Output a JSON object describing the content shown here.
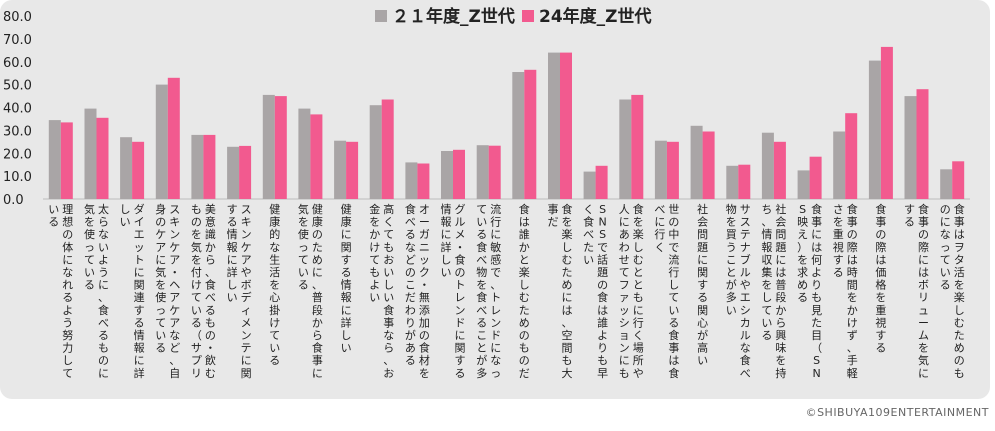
{
  "chart_data": {
    "type": "bar",
    "ylim": [
      0,
      80
    ],
    "yticks": [
      "0.0",
      "10.0",
      "20.0",
      "30.0",
      "40.0",
      "50.0",
      "60.0",
      "70.0",
      "80.0"
    ],
    "legend_position": "top-center",
    "grid": false,
    "series": [
      {
        "name": "２１年度_Z世代",
        "color": "#a9a5a6",
        "values": [
          34.5,
          39.5,
          27.0,
          50.0,
          28.0,
          22.8,
          45.5,
          39.5,
          25.5,
          41.0,
          16.0,
          21.0,
          23.5,
          55.5,
          64.0,
          12.0,
          43.5,
          25.5,
          32.0,
          14.5,
          29.0,
          12.5,
          29.5,
          60.5,
          45.0,
          13.0
        ]
      },
      {
        "name": "24年度_Z世代",
        "color": "#f25a8f",
        "values": [
          33.5,
          35.5,
          25.0,
          53.0,
          28.0,
          23.2,
          45.0,
          37.0,
          25.0,
          43.5,
          15.5,
          21.5,
          23.3,
          56.5,
          64.0,
          14.5,
          45.5,
          25.0,
          29.5,
          15.0,
          25.0,
          18.5,
          37.5,
          66.5,
          48.0,
          16.5
        ]
      }
    ],
    "categories": [
      "理想の体になれるよう努力している",
      "太らないように、食べるものに気を使っている",
      "ダイエットに関連する情報に詳しい",
      "スキンケア・ヘアケアなど、自身のケアに気を使っている",
      "美意識から、食べるもの・飲むものを気を付けている（サプリメントの飲…",
      "スキンケアやボディメンテに関する情報に詳しい",
      "健康的な生活を心掛けている",
      "健康のために、普段から食事に気を使っている",
      "健康に関する情報に詳しい",
      "高くてもおいしい食事なら、お金をかけてもよい",
      "オーガニック・無添加の食材を食べるなどのこだわりがある",
      "グルメ・食のトレンドに関する情報に詳しい",
      "流行に敏感で、トレンドになっている食べ物を食べることが多い",
      "食は誰かと楽しむためのものだ",
      "食を楽しむためには、空間も大事だ",
      "SNSで話題の食は誰よりも早く食べたい",
      "食を楽しむとともに行く場所や人にあわせてファッションにもこだわる",
      "世の中で流行している食事は食べに行く",
      "社会問題に関する関心が高い",
      "サステナブルやエシカルな食べ物を買うことが多い",
      "社会問題には普段から興味を持ち、情報収集をしている",
      "食事には何よりも見た目（SNS映え）を求める",
      "食事の際は時間をかけず、手軽さを重視する",
      "食事の際は価格を重視する",
      "食事の際にはボリュームを気にする",
      "食事はヲタ活を楽しむためのものになっている"
    ]
  },
  "copyright": "©SHIBUYA109ENTERTAINMENT"
}
